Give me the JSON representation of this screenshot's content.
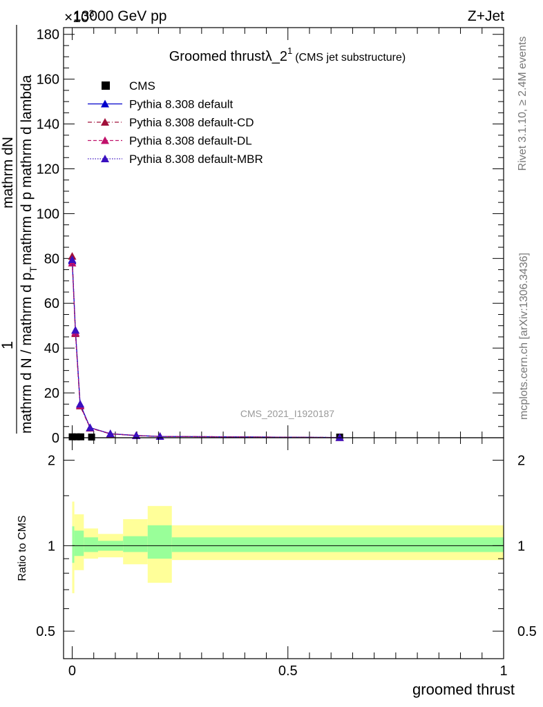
{
  "header": {
    "energy": "13000 GeV pp",
    "process": "Z+Jet",
    "exponent": "×10",
    "exponent_power": "3"
  },
  "title": {
    "main": "Groomed thrustλ_2",
    "sup": "1",
    "suffix": "(CMS jet substructure)"
  },
  "side_labels": {
    "rivet": "Rivet 3.1.10, ≥ 2.4M events",
    "mcplots": "mcplots.cern.ch [arXiv:1306.3436]"
  },
  "watermark": "CMS_2021_I1920187",
  "y_axis": {
    "numerator_lines": [
      "1",
      "mathrm dN"
    ],
    "line_a": "mathrm d N / mathrm d p",
    "line_b": "mathrm d p  mathrm d lambda",
    "sub_t": "T"
  },
  "ratio_ylabel": "Ratio to CMS",
  "xlabel": "groomed thrust",
  "legend": [
    {
      "label": "CMS",
      "color": "#000000",
      "style": "square"
    },
    {
      "label": "Pythia 8.308 default",
      "color": "#0000cc",
      "style": "solid"
    },
    {
      "label": "Pythia 8.308 default-CD",
      "color": "#a0103a",
      "style": "dashdot"
    },
    {
      "label": "Pythia 8.308 default-DL",
      "color": "#c0106a",
      "style": "dashed"
    },
    {
      "label": "Pythia 8.308 default-MBR",
      "color": "#3a10c0",
      "style": "dotted"
    }
  ],
  "chart_data": [
    {
      "type": "line",
      "panel": "main",
      "title": "Groomed thrustλ_2^1 (CMS jet substructure)",
      "xlabel": "groomed thrust",
      "ylabel": "1 / mathrm d N / mathrm d p_T mathrm d^2N / mathrm d p_T mathrm d lambda",
      "xlim": [
        -0.02,
        1.0
      ],
      "ylim": [
        0,
        183
      ],
      "y_scale_note": "×10^3",
      "x_ticks": [
        0,
        0.5,
        1
      ],
      "x_tick_labels": [
        "0",
        "0.5",
        "1"
      ],
      "y_ticks": [
        0,
        20,
        40,
        60,
        80,
        100,
        120,
        140,
        160,
        180
      ],
      "y_tick_labels": [
        "0",
        "20",
        "40",
        "60",
        "80",
        "100",
        "120",
        "140",
        "160",
        "180"
      ],
      "series": [
        {
          "name": "CMS",
          "x": [
            0.0,
            0.01,
            0.02,
            0.045,
            0.62
          ],
          "y": [
            0.4,
            0.4,
            0.4,
            0.3,
            0.3
          ]
        },
        {
          "name": "Pythia 8.308 default",
          "x": [
            0.0,
            0.0075,
            0.0185,
            0.0415,
            0.0885,
            0.1485,
            0.2035,
            0.62
          ],
          "y": [
            79,
            48,
            15,
            4.5,
            1.8,
            1.0,
            0.6,
            0.1
          ]
        },
        {
          "name": "Pythia 8.308 default-CD",
          "x": [
            0.0,
            0.0075,
            0.0185,
            0.0415,
            0.0885,
            0.1485,
            0.2035,
            0.62
          ],
          "y": [
            81,
            46.5,
            14.2,
            4.3,
            1.7,
            1.0,
            0.6,
            0.1
          ]
        },
        {
          "name": "Pythia 8.308 default-DL",
          "x": [
            0.0,
            0.0075,
            0.0185,
            0.0415,
            0.0885,
            0.1485,
            0.2035,
            0.62
          ],
          "y": [
            78,
            47,
            14.5,
            4.4,
            1.8,
            1.0,
            0.6,
            0.1
          ]
        },
        {
          "name": "Pythia 8.308 default-MBR",
          "x": [
            0.0,
            0.0075,
            0.0185,
            0.0415,
            0.0885,
            0.1485,
            0.2035,
            0.62
          ],
          "y": [
            79.5,
            48,
            15,
            4.5,
            1.8,
            1.0,
            0.6,
            0.1
          ]
        }
      ]
    },
    {
      "type": "area",
      "panel": "ratio",
      "ylabel": "Ratio to CMS",
      "xlabel": "groomed thrust",
      "xlim": [
        -0.02,
        1.0
      ],
      "ylim": [
        0.4,
        2.4
      ],
      "y_scale": "log",
      "y_tick_labels": [
        "0.5",
        "1",
        "2"
      ],
      "reference": 1.0,
      "bins": [
        {
          "x0": 0.0,
          "x1": 0.005,
          "inner": [
            0.87,
            1.17
          ],
          "outer": [
            0.68,
            1.43
          ]
        },
        {
          "x0": 0.005,
          "x1": 0.027,
          "inner": [
            0.92,
            1.13
          ],
          "outer": [
            0.82,
            1.29
          ]
        },
        {
          "x0": 0.027,
          "x1": 0.06,
          "inner": [
            0.95,
            1.07
          ],
          "outer": [
            0.9,
            1.15
          ]
        },
        {
          "x0": 0.06,
          "x1": 0.118,
          "inner": [
            0.96,
            1.04
          ],
          "outer": [
            0.91,
            1.1
          ]
        },
        {
          "x0": 0.118,
          "x1": 0.175,
          "inner": [
            0.95,
            1.08
          ],
          "outer": [
            0.86,
            1.24
          ]
        },
        {
          "x0": 0.175,
          "x1": 0.231,
          "inner": [
            0.9,
            1.18
          ],
          "outer": [
            0.74,
            1.38
          ]
        },
        {
          "x0": 0.231,
          "x1": 1.0,
          "inner": [
            0.95,
            1.07
          ],
          "outer": [
            0.89,
            1.18
          ]
        }
      ]
    }
  ]
}
